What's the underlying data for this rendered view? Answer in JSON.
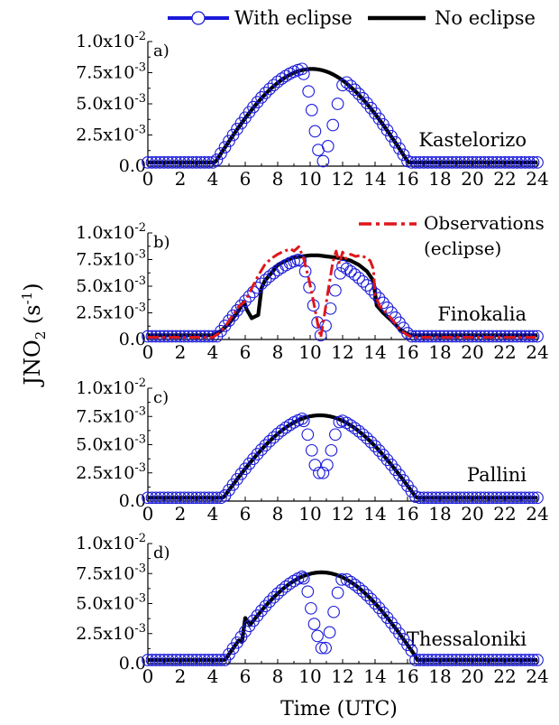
{
  "figure": {
    "ylabel": "JNO2 (s-1)",
    "xlabel": "Time (UTC)"
  },
  "legend": {
    "with_eclipse": "With eclipse",
    "no_eclipse": "No eclipse",
    "observations": "Observations",
    "observations_sub": "(eclipse)"
  },
  "colors": {
    "with_eclipse": "#1a1adb",
    "no_eclipse": "#000000",
    "observations": "#e0161b",
    "axis": "#000000"
  },
  "chart_data": [
    {
      "type": "line",
      "panel_label": "a)",
      "station": "Kastelorizo",
      "xlabel": "Time (UTC)",
      "ylabel": "JNO2 (s-1)",
      "xlim": [
        0,
        24
      ],
      "ylim": [
        0,
        0.01
      ],
      "xticks": [
        "0",
        "2",
        "4",
        "6",
        "8",
        "10",
        "12",
        "14",
        "16",
        "18",
        "20",
        "22",
        "24"
      ],
      "yticks": [
        {
          "value": 0,
          "label": "0.0"
        },
        {
          "value": 0.0025,
          "label": "2.5x10-3"
        },
        {
          "value": 0.005,
          "label": "5.0x10-3"
        },
        {
          "value": 0.0075,
          "label": "7.5x10-3"
        },
        {
          "value": 0.01,
          "label": "1.0x10-2"
        }
      ],
      "series": [
        {
          "name": "No eclipse",
          "style": "line",
          "params": {
            "sunrise": 4.0,
            "sunset": 16.2,
            "peak": 0.0078,
            "noon": 10.1
          }
        },
        {
          "name": "With eclipse",
          "style": "markers",
          "params": {
            "sunrise": 4.0,
            "sunset": 16.2,
            "peak": 0.0079,
            "noon": 10.1
          },
          "eclipse_points": [
            [
              9.6,
              0.0074
            ],
            [
              9.9,
              0.006
            ],
            [
              10.1,
              0.0045
            ],
            [
              10.3,
              0.0028
            ],
            [
              10.5,
              0.0013
            ],
            [
              10.8,
              0.0004
            ],
            [
              11.1,
              0.0016
            ],
            [
              11.4,
              0.0033
            ],
            [
              11.7,
              0.005
            ],
            [
              12.0,
              0.0065
            ]
          ]
        }
      ]
    },
    {
      "type": "line",
      "panel_label": "b)",
      "station": "Finokalia",
      "xlabel": "Time (UTC)",
      "ylabel": "JNO2 (s-1)",
      "xlim": [
        0,
        24
      ],
      "ylim": [
        0,
        0.01
      ],
      "xticks": [
        "0",
        "2",
        "4",
        "6",
        "8",
        "10",
        "12",
        "14",
        "16",
        "18",
        "20",
        "22",
        "24"
      ],
      "yticks": [
        {
          "value": 0,
          "label": "0.0"
        },
        {
          "value": 0.0025,
          "label": "2.5x10-3"
        },
        {
          "value": 0.005,
          "label": "5.0x10-3"
        },
        {
          "value": 0.0075,
          "label": "7.5x10-3"
        },
        {
          "value": 0.01,
          "label": "1.0x10-2"
        }
      ],
      "series": [
        {
          "name": "No eclipse",
          "style": "polyline",
          "points": [
            [
              0,
              0.0004
            ],
            [
              4.0,
              0.0004
            ],
            [
              4.5,
              0.0008
            ],
            [
              5.0,
              0.0015
            ],
            [
              5.5,
              0.0025
            ],
            [
              5.9,
              0.0035
            ],
            [
              6.1,
              0.0028
            ],
            [
              6.4,
              0.002
            ],
            [
              6.8,
              0.0023
            ],
            [
              7.0,
              0.0048
            ],
            [
              7.2,
              0.0055
            ],
            [
              7.6,
              0.0062
            ],
            [
              8.0,
              0.007
            ],
            [
              8.5,
              0.0074
            ],
            [
              9.0,
              0.0077
            ],
            [
              9.5,
              0.0078
            ],
            [
              10.0,
              0.0079
            ],
            [
              10.5,
              0.0079
            ],
            [
              11.0,
              0.0078
            ],
            [
              11.5,
              0.0077
            ],
            [
              12.0,
              0.0076
            ],
            [
              12.5,
              0.0074
            ],
            [
              13.0,
              0.007
            ],
            [
              13.5,
              0.0064
            ],
            [
              13.9,
              0.0055
            ],
            [
              14.1,
              0.0032
            ],
            [
              14.5,
              0.0025
            ],
            [
              15.0,
              0.0018
            ],
            [
              15.5,
              0.001
            ],
            [
              16.0,
              0.0005
            ],
            [
              16.3,
              0.0004
            ],
            [
              24,
              0.0004
            ]
          ]
        },
        {
          "name": "With eclipse",
          "style": "markers",
          "params": {
            "sunrise": 4.4,
            "sunset": 16.3,
            "peak": 0.0077,
            "noon": 10.2
          },
          "eclipse_points": [
            [
              9.4,
              0.0074
            ],
            [
              9.7,
              0.0064
            ],
            [
              9.95,
              0.0049
            ],
            [
              10.2,
              0.0032
            ],
            [
              10.45,
              0.0016
            ],
            [
              10.65,
              0.0004
            ],
            [
              10.95,
              0.0013
            ],
            [
              11.25,
              0.0029
            ],
            [
              11.55,
              0.0046
            ],
            [
              11.85,
              0.0062
            ]
          ]
        },
        {
          "name": "Observations (eclipse)",
          "style": "dashdot",
          "points": [
            [
              0,
              0.0002
            ],
            [
              4.0,
              0.0002
            ],
            [
              4.4,
              0.0006
            ],
            [
              4.8,
              0.0013
            ],
            [
              5.2,
              0.0022
            ],
            [
              5.6,
              0.0031
            ],
            [
              6.0,
              0.0036
            ],
            [
              6.4,
              0.0048
            ],
            [
              6.8,
              0.006
            ],
            [
              7.2,
              0.007
            ],
            [
              7.6,
              0.0076
            ],
            [
              8.0,
              0.008
            ],
            [
              8.4,
              0.0083
            ],
            [
              8.8,
              0.0085
            ],
            [
              9.0,
              0.0083
            ],
            [
              9.3,
              0.0087
            ],
            [
              9.6,
              0.0076
            ],
            [
              9.9,
              0.0058
            ],
            [
              10.2,
              0.0036
            ],
            [
              10.5,
              0.0012
            ],
            [
              10.65,
              0.0002
            ],
            [
              10.8,
              0.0015
            ],
            [
              11.1,
              0.0045
            ],
            [
              11.4,
              0.0073
            ],
            [
              11.6,
              0.0083
            ],
            [
              11.8,
              0.0071
            ],
            [
              12.0,
              0.0082
            ],
            [
              12.2,
              0.0076
            ],
            [
              12.5,
              0.008
            ],
            [
              12.8,
              0.0078
            ],
            [
              13.1,
              0.0079
            ],
            [
              13.4,
              0.0077
            ],
            [
              13.7,
              0.0074
            ],
            [
              13.9,
              0.0066
            ],
            [
              14.0,
              0.0042
            ],
            [
              14.3,
              0.0031
            ],
            [
              14.7,
              0.0025
            ],
            [
              15.1,
              0.0018
            ],
            [
              15.5,
              0.001
            ],
            [
              15.9,
              0.0005
            ],
            [
              16.3,
              0.0002
            ],
            [
              24,
              0.0002
            ]
          ]
        }
      ]
    },
    {
      "type": "line",
      "panel_label": "c)",
      "station": "Pallini",
      "xlabel": "Time (UTC)",
      "ylabel": "JNO2 (s-1)",
      "xlim": [
        0,
        24
      ],
      "ylim": [
        0,
        0.01
      ],
      "xticks": [
        "0",
        "2",
        "4",
        "6",
        "8",
        "10",
        "12",
        "14",
        "16",
        "18",
        "20",
        "22",
        "24"
      ],
      "yticks": [
        {
          "value": 0,
          "label": "0.0"
        },
        {
          "value": 0.0025,
          "label": "2.5x10-3"
        },
        {
          "value": 0.005,
          "label": "5.0x10-3"
        },
        {
          "value": 0.0075,
          "label": "7.5x10-3"
        },
        {
          "value": 0.01,
          "label": "1.0x10-2"
        }
      ],
      "series": [
        {
          "name": "No eclipse",
          "style": "line",
          "params": {
            "sunrise": 4.5,
            "sunset": 16.6,
            "peak": 0.0076,
            "noon": 10.6
          }
        },
        {
          "name": "With eclipse",
          "style": "markers",
          "params": {
            "sunrise": 4.5,
            "sunset": 16.6,
            "peak": 0.0076,
            "noon": 10.6
          },
          "eclipse_points": [
            [
              9.6,
              0.0071
            ],
            [
              9.85,
              0.0059
            ],
            [
              10.1,
              0.0045
            ],
            [
              10.3,
              0.0032
            ],
            [
              10.55,
              0.0025
            ],
            [
              10.8,
              0.0025
            ],
            [
              11.05,
              0.0032
            ],
            [
              11.3,
              0.0045
            ],
            [
              11.55,
              0.0059
            ],
            [
              11.8,
              0.007
            ]
          ]
        }
      ]
    },
    {
      "type": "line",
      "panel_label": "d)",
      "station": "Thessaloniki",
      "xlabel": "Time (UTC)",
      "ylabel": "JNO2 (s-1)",
      "xlim": [
        0,
        24
      ],
      "ylim": [
        0,
        0.01
      ],
      "xticks": [
        "0",
        "2",
        "4",
        "6",
        "8",
        "10",
        "12",
        "14",
        "16",
        "18",
        "20",
        "22",
        "24"
      ],
      "yticks": [
        {
          "value": 0,
          "label": "0.0"
        },
        {
          "value": 0.0025,
          "label": "2.5x10-3"
        },
        {
          "value": 0.005,
          "label": "5.0x10-3"
        },
        {
          "value": 0.0075,
          "label": "7.5x10-3"
        },
        {
          "value": 0.01,
          "label": "1.0x10-2"
        }
      ],
      "series": [
        {
          "name": "No eclipse",
          "style": "line",
          "params": {
            "sunrise": 4.6,
            "sunset": 16.5,
            "peak": 0.0076,
            "noon": 10.7
          },
          "bump": [
            [
              5.8,
              0.0018
            ],
            [
              6.0,
              0.0038
            ]
          ]
        },
        {
          "name": "With eclipse",
          "style": "markers",
          "params": {
            "sunrise": 4.6,
            "sunset": 16.5,
            "peak": 0.0076,
            "noon": 10.7
          },
          "eclipse_points": [
            [
              9.6,
              0.0071
            ],
            [
              9.85,
              0.006
            ],
            [
              10.05,
              0.0046
            ],
            [
              10.25,
              0.0033
            ],
            [
              10.45,
              0.0023
            ],
            [
              10.7,
              0.0013
            ],
            [
              10.95,
              0.0013
            ],
            [
              11.2,
              0.0026
            ],
            [
              11.45,
              0.0043
            ],
            [
              11.7,
              0.0059
            ],
            [
              11.95,
              0.007
            ]
          ]
        }
      ]
    }
  ]
}
